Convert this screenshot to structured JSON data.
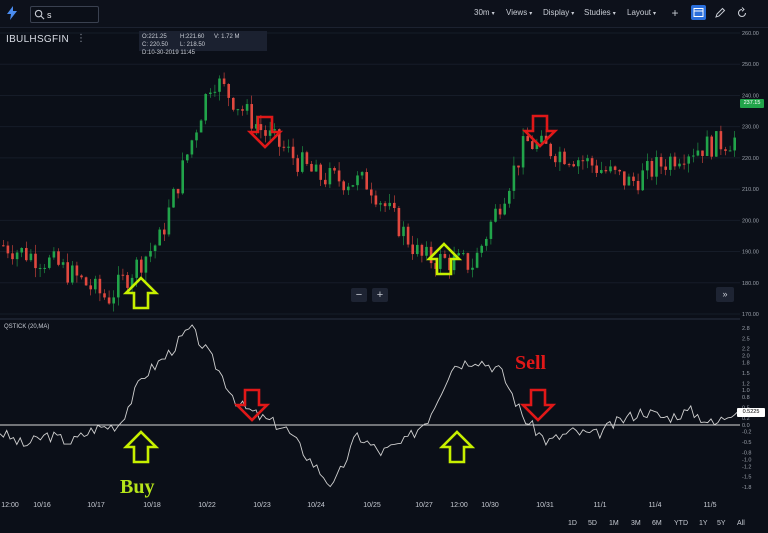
{
  "toolbar": {
    "search_value": "s",
    "interval": "30m",
    "views": "Views",
    "display": "Display",
    "studies": "Studies",
    "layout": "Layout"
  },
  "symbol": {
    "name": "IBULHSGFIN",
    "menu": "⋮"
  },
  "ohlc": {
    "o": "O:221.25",
    "h": "H:221.60",
    "v": "V: 1.72 M",
    "c": "C: 220.50",
    "l": "L: 218.50",
    "d": "D:10-30-2019 11:45"
  },
  "price_axis": {
    "ticks": [
      "260.00",
      "250.00",
      "240.00",
      "230.00",
      "220.00",
      "210.00",
      "200.00",
      "190.00",
      "180.00",
      "170.00"
    ],
    "last_price": "237.15"
  },
  "qstick": {
    "label": "QSTICK (20,MA)",
    "ticks": [
      "2.8",
      "2.5",
      "2.2",
      "2.0",
      "1.8",
      "1.5",
      "1.2",
      "1.0",
      "0.8",
      "0.5",
      "0.2",
      "0.0",
      "-0.2",
      "-0.5",
      "-0.8",
      "-1.0",
      "-1.2",
      "-1.5",
      "-1.8"
    ],
    "last_value": "0.5225"
  },
  "time_axis": [
    "12:00",
    "10/16",
    "10/17",
    "10/18",
    "10/22",
    "10/23",
    "10/24",
    "10/25",
    "10/27",
    "12:00",
    "10/30",
    "10/31",
    "11/1",
    "11/4",
    "11/5"
  ],
  "zoom": {
    "minus": "−",
    "plus": "+"
  },
  "scroll_right": "»",
  "ranges": [
    "1D",
    "5D",
    "1M",
    "3M",
    "6M",
    "YTD",
    "1Y",
    "5Y",
    "All"
  ],
  "annotations": {
    "buy": "Buy",
    "sell": "Sell"
  },
  "colors": {
    "up": "#21a44a",
    "down": "#e0483f",
    "arrow_buy": "#c7f000",
    "arrow_sell": "#e01818",
    "buy_text": "#b6e51a",
    "sell_text": "#e01818"
  },
  "chart_data": [
    {
      "type": "candlestick",
      "title": "IBULHSGFIN",
      "interval": "30m",
      "ylim": [
        167,
        263
      ],
      "x": [
        "10/16",
        "10/17",
        "10/18",
        "10/22",
        "10/23",
        "10/24",
        "10/25",
        "10/27",
        "10/30",
        "10/31",
        "11/1",
        "11/4",
        "11/5"
      ],
      "close_path_approx": [
        192,
        186,
        175,
        194,
        246,
        228,
        214,
        212,
        188,
        186,
        225,
        220,
        212,
        222,
        226
      ]
    },
    {
      "type": "line",
      "title": "QSTICK (20,MA)",
      "ylim": [
        -1.9,
        2.9
      ],
      "values_approx": [
        -0.2,
        -0.6,
        -0.3,
        -0.5,
        -0.1,
        0.0,
        1.4,
        2.0,
        2.8,
        1.8,
        0.6,
        0.2,
        -0.1,
        -1.0,
        -1.8,
        -0.3,
        -0.8,
        -0.5,
        0.2,
        1.7,
        1.9,
        1.6,
        0.2,
        -0.5,
        -0.2,
        -0.3,
        0.1,
        0.4,
        0.2,
        0.4,
        0.0,
        0.52
      ]
    }
  ]
}
